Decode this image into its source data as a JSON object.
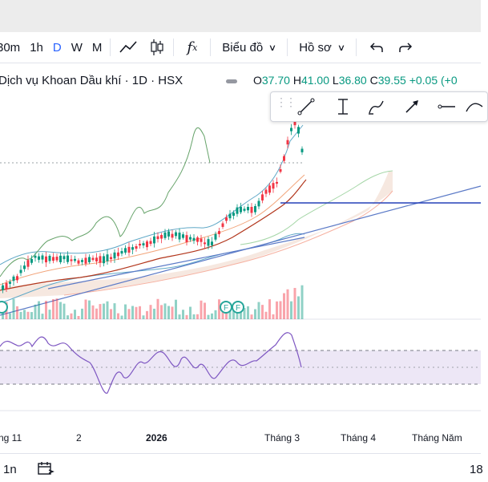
{
  "toolbar": {
    "intervals": [
      "30m",
      "1h",
      "D",
      "W",
      "M"
    ],
    "active_interval": "D",
    "chart_type_label": "Biểu đồ",
    "profile_label": "Hồ sơ"
  },
  "legend": {
    "title": "Dịch vụ Khoan Dầu khí · 1D · HSX",
    "open_label": "O",
    "open": "37.70",
    "high_label": "H",
    "high": "41.00",
    "low_label": "L",
    "low": "36.80",
    "close_label": "C",
    "close": "39.55",
    "change": "+0.05 (+0"
  },
  "drawing_tools": [
    "trend-line",
    "measure",
    "brush",
    "arrow",
    "horizontal-ray",
    "curve"
  ],
  "xaxis": {
    "labels": [
      "ng 11",
      "2",
      "2026",
      "Tháng 3",
      "Tháng 4",
      "Tháng Năm"
    ]
  },
  "events": [
    "F",
    "F"
  ],
  "bottom": {
    "range": "1n",
    "time": "18"
  },
  "colors": {
    "up": "#089981",
    "down": "#f23645",
    "accent": "#2962ff",
    "rsi": "#7e57c2"
  }
}
